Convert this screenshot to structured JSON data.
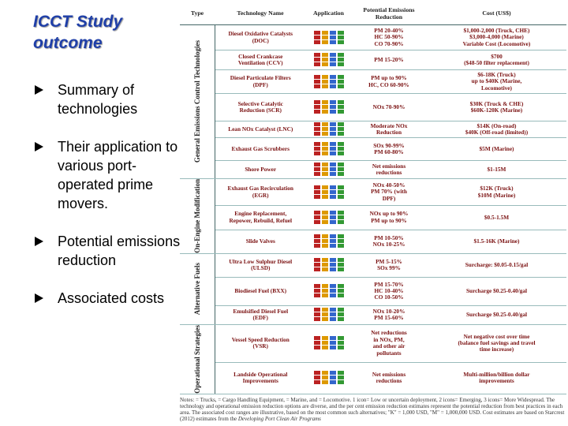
{
  "title": "ICCT Study outcome",
  "bullets": [
    "Summary of technologies",
    "Their application to various port-operated prime movers.",
    "Potential emissions reduction",
    "Associated costs"
  ],
  "table": {
    "headers": [
      "Type",
      "Technology Name",
      "Application",
      "Potential Emissions Reduction",
      "Cost (US$)"
    ],
    "groups": [
      {
        "type": "General Emissions Control Technologies",
        "rows": [
          [
            "Diesel Oxidative Catalysts\n(DOC)",
            "PM 20-40%\nHC 50-90%\nCO 70-90%",
            "$1,000-2,000 (Truck, CHE)\n$3,000-4,000 (Marine)\nVariable Cost (Locomotive)"
          ],
          [
            "Closed Crankcase\nVentilation (CCV)",
            "PM 15-20%",
            "$700\n($48-50 filter replacement)"
          ],
          [
            "Diesel Particulate Filters\n(DPF)",
            "PM up to 90%\nHC, CO 60-90%",
            "$6-18K (Truck)\nup to $40K (Marine,\nLocomotive)"
          ],
          [
            "Selective Catalytic\nReduction (SCR)",
            "NOx 70-90%",
            "$30K (Truck & CHE)\n$60K-120K (Marine)"
          ],
          [
            "Lean NOx Catalyst (LNC)",
            "Moderate NOx\nReduction",
            "$14K (On-road)\n$40K (Off-road (limited))"
          ],
          [
            "Exhaust Gas Scrubbers",
            "SOx 90-99%\nPM 60-80%",
            "$5M (Marine)"
          ],
          [
            "Shore Power",
            "Net emissions\nreductions",
            "$1-15M"
          ]
        ]
      },
      {
        "type": "On-Engine Modification",
        "rows": [
          [
            "Exhaust Gas Recirculation\n(EGR)",
            "NOx 40-50%\nPM 70% (with\nDPF)",
            "$12K (Truck)\n$10M (Marine)"
          ],
          [
            "Engine Replacement,\nRepower, Rebuild, Refuel",
            "NOx up to 90%\nPM up to 90%",
            "$0.5-1.5M"
          ],
          [
            "Slide Valves",
            "PM 10-50%\nNOx 10-25%",
            "$1.5-16K (Marine)"
          ]
        ]
      },
      {
        "type": "Alternative Fuels",
        "rows": [
          [
            "Ultra Low Sulphur Diesel\n(ULSD)",
            "PM 5-15%\nSOx 99%",
            "Surcharge: $0.05-0.15/gal"
          ],
          [
            "Biodiesel Fuel (BXX)",
            "PM 15-70%\nHC 10-40%\nCO 10-50%",
            "Surcharge $0.25-0.40/gal"
          ],
          [
            "Emulsified Diesel Fuel\n(EDF)",
            "NOx 10-20%\nPM 15-60%",
            "Surcharge $0.25-0.40/gal"
          ]
        ]
      },
      {
        "type": "Operational Strategies",
        "rows": [
          [
            "Vessel Speed Reduction\n(VSR)",
            "Net reductions\nin NOx, PM,\nand other air\npollutants",
            "Net negative cost over time\n(balance fuel savings and travel\ntime increase)"
          ],
          [
            "Landside Operational\nImprovements",
            "Net emissions\nreductions",
            "Multi-million/billion dollar\nimprovements"
          ]
        ]
      }
    ],
    "notes": "Notes: = Trucks, = Cargo Handling Equipment, = Marine, and = Locomotive. 1 icon= Low or uncertain deployment, 2 icons= Emerging, 3 icons= More Widespread. The technology and operational emission reduction options are diverse, and the per cent emission reduction estimates represent the potential reduction from best practices in each area. The associated cost ranges are illustrative, based on the most common such alternatives; \"K\" = 1,000 USD, \"M\" = 1,000,000 USD. Cost estimates are based on Starcrest (2012) estimates from the",
    "notes_source": "Developing Port Clean Air Programs"
  }
}
